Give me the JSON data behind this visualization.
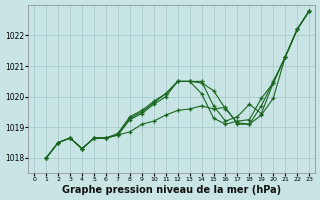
{
  "background_color": "#c8e4e4",
  "plot_bg_color": "#c8e4e4",
  "grid_color": "#a8cccc",
  "line_color": "#1a6620",
  "marker_color": "#1a6620",
  "xlabel": "Graphe pression niveau de la mer (hPa)",
  "xlabel_fontsize": 7.0,
  "ylim": [
    1017.5,
    1023.0
  ],
  "xlim": [
    -0.5,
    23.5
  ],
  "yticks": [
    1018,
    1019,
    1020,
    1021,
    1022
  ],
  "xticks": [
    0,
    1,
    2,
    3,
    4,
    5,
    6,
    7,
    8,
    9,
    10,
    11,
    12,
    13,
    14,
    15,
    16,
    17,
    18,
    19,
    20,
    21,
    22,
    23
  ],
  "series": [
    [
      1018.0,
      1018.5,
      1018.65,
      1018.3,
      1018.65,
      1018.65,
      1018.75,
      1018.85,
      1019.1,
      1019.2,
      1019.4,
      1019.55,
      1019.6,
      1019.7,
      1019.6,
      1019.65,
      1019.1,
      1019.1,
      1019.7,
      1020.5,
      1021.3,
      1022.2,
      1022.8
    ],
    [
      1018.0,
      1018.5,
      1018.65,
      1018.3,
      1018.65,
      1018.65,
      1018.75,
      1019.25,
      1019.45,
      1019.75,
      1020.0,
      1020.5,
      1020.5,
      1020.45,
      1020.2,
      1019.6,
      1019.15,
      1019.1,
      1019.4,
      1019.95,
      1021.3,
      1022.2,
      1022.8
    ],
    [
      1018.0,
      1018.5,
      1018.65,
      1018.3,
      1018.65,
      1018.65,
      1018.75,
      1019.3,
      1019.5,
      1019.8,
      1020.1,
      1020.5,
      1020.5,
      1020.5,
      1019.7,
      1019.2,
      1019.35,
      1019.75,
      1019.45,
      1020.45,
      1021.3,
      1022.2,
      1022.8
    ],
    [
      1018.0,
      1018.5,
      1018.65,
      1018.3,
      1018.65,
      1018.65,
      1018.8,
      1019.35,
      1019.55,
      1019.85,
      1020.1,
      1020.5,
      1020.5,
      1020.1,
      1019.3,
      1019.1,
      1019.2,
      1019.25,
      1019.95,
      1020.45,
      1021.3,
      1022.2,
      1022.8
    ]
  ],
  "series_x_start": 1
}
